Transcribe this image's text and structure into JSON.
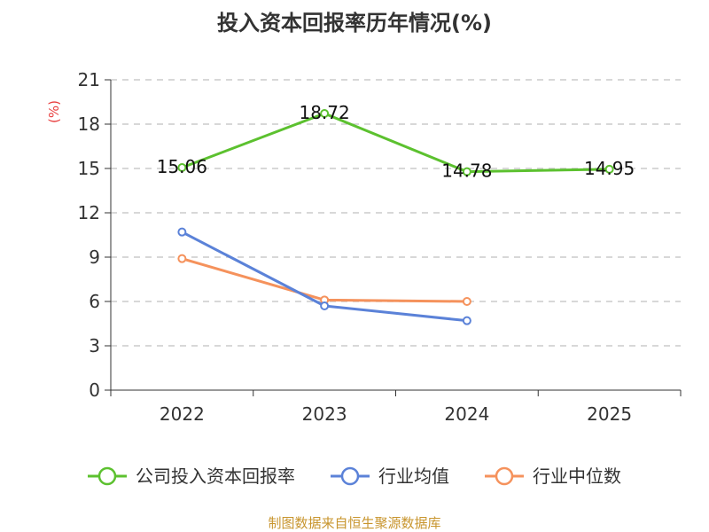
{
  "chart_data": {
    "type": "line",
    "title": "投入资本回报率历年情况(%)",
    "ylabel": "(%)",
    "xlabel": "",
    "categories": [
      "2022",
      "2023",
      "2024",
      "2025"
    ],
    "ylim": [
      0,
      21
    ],
    "yticks": [
      0,
      3,
      6,
      9,
      12,
      15,
      18,
      21
    ],
    "grid": true,
    "legend_position": "bottom",
    "series": [
      {
        "name": "公司投入资本回报率",
        "color": "#5cc12f",
        "values": [
          15.06,
          18.72,
          14.78,
          14.95
        ],
        "labels": [
          "15.06",
          "18.72",
          "14.78",
          "14.95"
        ]
      },
      {
        "name": "行业均值",
        "color": "#5b82d8",
        "values": [
          10.7,
          5.7,
          4.7,
          null
        ]
      },
      {
        "name": "行业中位数",
        "color": "#f5925c",
        "values": [
          8.9,
          6.1,
          6.0,
          null
        ]
      }
    ],
    "source": "制图数据来自恒生聚源数据库"
  }
}
